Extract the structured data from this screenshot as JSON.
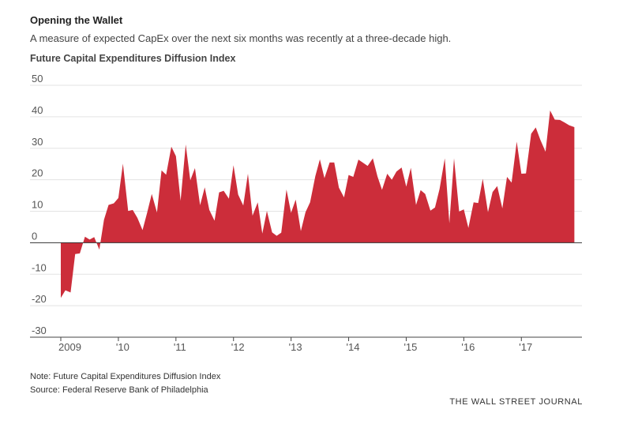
{
  "header": {
    "title": "Opening the Wallet",
    "subtitle": "A measure of expected CapEx over the next six months was recently at a three-decade high."
  },
  "footer": {
    "note": "Note: Future Capital Expenditures Diffusion Index",
    "source": "Source: Federal Reserve Bank of Philadelphia",
    "brand": "THE WALL STREET JOURNAL"
  },
  "colors": {
    "area": "#cc2d3a",
    "grid": "#e3e3e3",
    "zero_line": "#333333"
  },
  "chart_data": {
    "type": "area",
    "title": "Future Capital Expenditures Diffusion Index",
    "xlabel": "",
    "ylabel": "",
    "ylim": [
      -30,
      50
    ],
    "y_ticks": [
      50,
      40,
      30,
      20,
      10,
      0,
      -10,
      -20,
      -30
    ],
    "y_tick_labels": [
      "50",
      "40",
      "30",
      "20",
      "10",
      "0",
      "-10",
      "-20",
      "-30"
    ],
    "xlim": [
      2009.0,
      2017.97
    ],
    "x_ticks": [
      2009,
      2010,
      2011,
      2012,
      2013,
      2014,
      2015,
      2016,
      2017
    ],
    "x_tick_labels": [
      "2009",
      "'10",
      "'11",
      "'12",
      "'13",
      "'14",
      "'15",
      "'16",
      "'17"
    ],
    "grid": true,
    "legend": "none",
    "series": [
      {
        "x": [
          2009.0,
          2009.08,
          2009.17,
          2009.25,
          2009.33,
          2009.42,
          2009.5,
          2009.58,
          2009.67,
          2009.75,
          2009.83,
          2009.92,
          2010.0,
          2010.08,
          2010.17,
          2010.25,
          2010.33,
          2010.42,
          2010.5,
          2010.58,
          2010.67,
          2010.75,
          2010.83,
          2010.92,
          2011.0,
          2011.08,
          2011.17,
          2011.25,
          2011.33,
          2011.42,
          2011.5,
          2011.58,
          2011.67,
          2011.75,
          2011.83,
          2011.92,
          2012.0,
          2012.08,
          2012.17,
          2012.25,
          2012.33,
          2012.42,
          2012.5,
          2012.58,
          2012.67,
          2012.75,
          2012.83,
          2012.92,
          2013.0,
          2013.08,
          2013.17,
          2013.25,
          2013.33,
          2013.42,
          2013.5,
          2013.58,
          2013.67,
          2013.75,
          2013.83,
          2013.92,
          2014.0,
          2014.08,
          2014.17,
          2014.25,
          2014.33,
          2014.42,
          2014.5,
          2014.58,
          2014.67,
          2014.75,
          2014.83,
          2014.92,
          2015.0,
          2015.08,
          2015.17,
          2015.25,
          2015.33,
          2015.42,
          2015.5,
          2015.58,
          2015.67,
          2015.75,
          2015.83,
          2015.92,
          2016.0,
          2016.08,
          2016.17,
          2016.25,
          2016.33,
          2016.42,
          2016.5,
          2016.58,
          2016.67,
          2016.75,
          2016.83,
          2016.92,
          2017.0,
          2017.08,
          2017.17,
          2017.25,
          2017.33,
          2017.42,
          2017.5,
          2017.58,
          2017.67,
          2017.75,
          2017.83,
          2017.92
        ],
        "values": [
          -17.5,
          -15.1,
          -15.8,
          -3.6,
          -3.4,
          1.9,
          1.0,
          1.8,
          -2.2,
          7.3,
          12.0,
          12.5,
          14.2,
          25.1,
          10.1,
          10.4,
          7.9,
          4.0,
          9.6,
          15.5,
          9.6,
          23.0,
          21.6,
          30.5,
          27.5,
          13.3,
          31.2,
          19.8,
          23.7,
          11.9,
          17.6,
          10.4,
          7.0,
          16.0,
          16.5,
          14.0,
          24.6,
          15.3,
          11.8,
          21.9,
          8.6,
          12.8,
          2.9,
          10.1,
          3.3,
          2.2,
          3.2,
          16.9,
          9.5,
          13.7,
          3.7,
          9.7,
          12.8,
          21.1,
          26.5,
          20.5,
          25.5,
          25.5,
          17.5,
          14.4,
          21.5,
          20.9,
          26.4,
          25.4,
          24.4,
          26.8,
          21.1,
          16.8,
          21.9,
          20.0,
          22.6,
          23.9,
          17.8,
          23.8,
          12.0,
          16.7,
          15.5,
          10.2,
          11.2,
          17.1,
          26.8,
          6.2,
          26.8,
          9.9,
          10.6,
          4.7,
          12.8,
          12.6,
          20.3,
          9.7,
          16.1,
          18.0,
          10.9,
          20.9,
          19.1,
          32.1,
          21.9,
          22.0,
          34.6,
          36.6,
          32.7,
          28.9,
          42.0,
          39.1,
          39.0,
          38.2,
          37.3,
          36.7
        ]
      }
    ]
  }
}
